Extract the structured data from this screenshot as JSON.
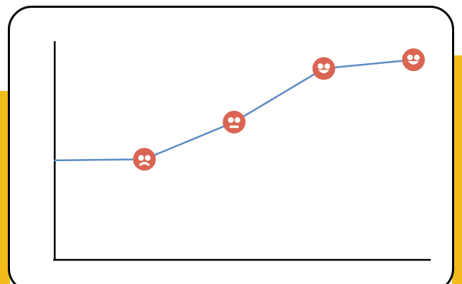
{
  "colors": {
    "accent": "#F2BC1C",
    "card_border": "#000000",
    "axis": "#000000",
    "line": "#5B8BC4",
    "marker_fill": "#D96552",
    "marker_face": "#FFFFFF"
  },
  "chart_data": {
    "type": "line",
    "title": "",
    "xlabel": "",
    "ylabel": "",
    "grid": false,
    "legend": "none",
    "x": [
      0,
      1,
      2,
      3,
      4
    ],
    "xlim": [
      0,
      4.2
    ],
    "ylim": [
      0,
      100
    ],
    "series": [
      {
        "values": [
          45.5,
          46,
          63,
          87.5,
          91.5
        ],
        "markers": [
          null,
          "frown-face-icon",
          "neutral-face-icon",
          "smile-face-icon",
          "smile-face-icon"
        ]
      }
    ]
  }
}
